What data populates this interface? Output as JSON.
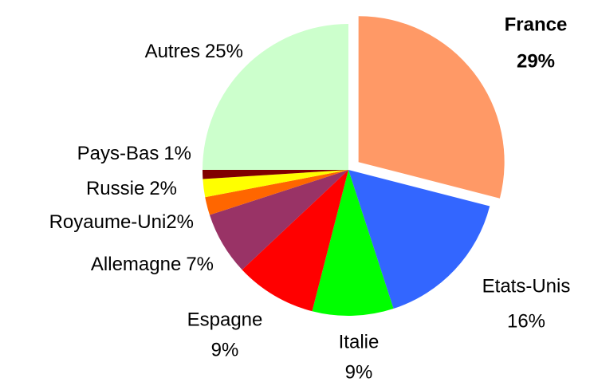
{
  "chart_data": {
    "type": "pie",
    "categories": [
      "France",
      "Etats-Unis",
      "Italie",
      "Espagne",
      "Allemagne",
      "Royaume-Uni",
      "Russie",
      "Pays-Bas",
      "Autres"
    ],
    "values": [
      29,
      16,
      9,
      9,
      7,
      2,
      2,
      1,
      25
    ],
    "value_labels": [
      "29%",
      "16%",
      "9%",
      "9%",
      "7%",
      "2%",
      "2%",
      "1%",
      "25%"
    ],
    "colors": [
      "#FF9966",
      "#3366FF",
      "#00FF00",
      "#FF0000",
      "#993366",
      "#FF6600",
      "#FFFF00",
      "#800000",
      "#CCFFCC"
    ]
  }
}
